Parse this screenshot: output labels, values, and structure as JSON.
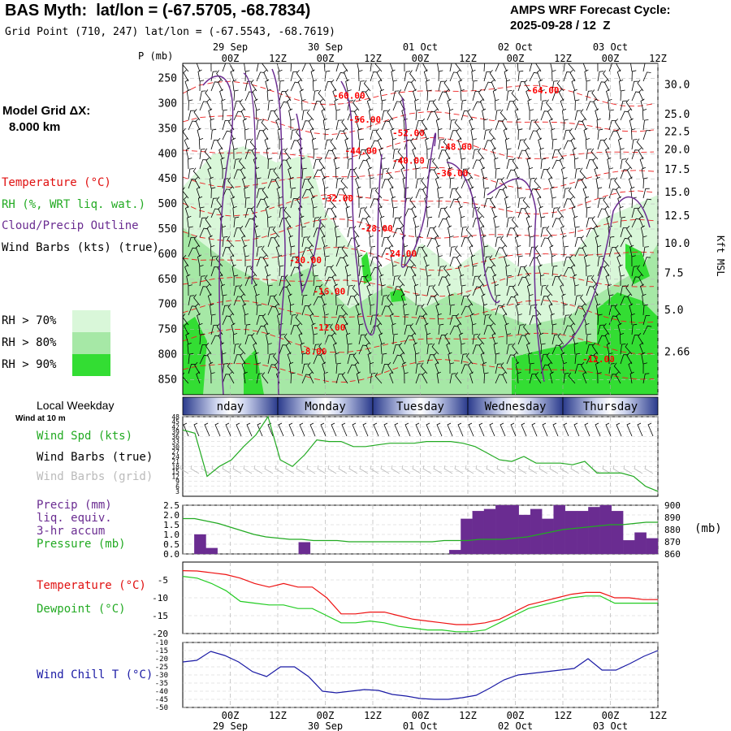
{
  "header": {
    "title": "BAS Myth:  lat/lon = (-67.5705, -68.7834)",
    "subtitle": "Grid Point (710, 247) lat/lon = (-67.5543, -68.7619)",
    "forecast_label": "AMPS WRF Forecast Cycle:",
    "forecast_cycle": "2025-09-28 / 12  Z",
    "model_grid_label": "Model Grid ΔX:",
    "model_grid_value": "8.000 km"
  },
  "time_axis": {
    "hours": [
      -12,
      0,
      12,
      24,
      36,
      48,
      60,
      72,
      84,
      96,
      108
    ],
    "tick_labels": [
      "00Z",
      "12Z",
      "00Z",
      "12Z",
      "00Z",
      "12Z",
      "00Z",
      "12Z",
      "00Z",
      "12Z"
    ],
    "tick_hours": [
      12,
      24,
      36,
      48,
      60,
      72,
      84,
      96,
      108,
      120
    ],
    "date_labels": [
      "29 Sep",
      "30 Sep",
      "01 Oct",
      "02 Oct",
      "03 Oct"
    ],
    "date_hours": [
      12,
      36,
      60,
      84,
      108
    ],
    "range": [
      0,
      120
    ]
  },
  "weekdays": {
    "label": "Local Weekday",
    "days": [
      "nday",
      "Monday",
      "Tuesday",
      "Wednesday",
      "Thursday"
    ]
  },
  "legend": {
    "temperature": "Temperature (°C)",
    "rh": "RH (%, WRT liq. wat.)",
    "cloud": "Cloud/Precip Outline",
    "wind": "Wind Barbs (kts) (true)",
    "rh70": "RH > 70%",
    "rh80": "RH > 80%",
    "rh90": "RH > 90%",
    "colors": {
      "rh70": "#d9f7d9",
      "rh80": "#a6e8a6",
      "rh90": "#33dd33",
      "temp": "#ff0000",
      "cloud": "#6a2c91"
    }
  },
  "chart_data": [
    {
      "type": "heatmap",
      "title": "Vertical time section",
      "ylabel": "P (mb)",
      "y2label": "Kft MSL",
      "p_levels": [
        250,
        300,
        350,
        400,
        450,
        500,
        550,
        600,
        650,
        700,
        750,
        800,
        850
      ],
      "p_range": [
        220,
        880
      ],
      "kft_labels": [
        "30.0",
        "25.0",
        "22.5",
        "20.0",
        "17.5",
        "15.0",
        "12.5",
        "10.0",
        "7.5",
        "5.0",
        "2.66"
      ],
      "kft_pressures": [
        263,
        322,
        357,
        392,
        432,
        477,
        524,
        579,
        638,
        712,
        795,
        880
      ],
      "temperature_labels": [
        {
          "text": "-60.00",
          "hour": 42,
          "p": 290
        },
        {
          "text": "-56.00",
          "hour": 46,
          "p": 338
        },
        {
          "text": "-52.00",
          "hour": 57,
          "p": 365
        },
        {
          "text": "-48.00",
          "hour": 69,
          "p": 392
        },
        {
          "text": "-44.00",
          "hour": 45,
          "p": 400
        },
        {
          "text": "-40.00",
          "hour": 57,
          "p": 420
        },
        {
          "text": "-36.00",
          "hour": 68,
          "p": 445
        },
        {
          "text": "-32.00",
          "hour": 39,
          "p": 495
        },
        {
          "text": "-28.00",
          "hour": 49,
          "p": 555
        },
        {
          "text": "-24.00",
          "hour": 55,
          "p": 605
        },
        {
          "text": "-20.00",
          "hour": 31,
          "p": 618
        },
        {
          "text": "-16.00",
          "hour": 37,
          "p": 680
        },
        {
          "text": "-12.00",
          "hour": 37,
          "p": 752
        },
        {
          "text": "-8.00",
          "hour": 33,
          "p": 800
        },
        {
          "text": "-64.00",
          "hour": 91,
          "p": 280
        },
        {
          "text": "-12.00",
          "hour": 105,
          "p": 815
        }
      ]
    },
    {
      "type": "line",
      "title": "Wind Spd (kts)",
      "series": [
        {
          "name": "Wind Spd (kts)",
          "color": "#22aa22",
          "values": [
            40,
            38,
            12,
            18,
            22,
            30,
            37,
            48,
            22,
            18,
            25,
            34,
            33,
            33,
            30,
            30,
            31,
            32,
            32,
            32,
            33,
            33,
            33,
            32,
            30,
            26,
            22,
            21,
            24,
            20,
            20,
            20,
            19,
            21,
            14,
            14,
            14,
            12,
            6,
            3
          ]
        }
      ],
      "ylim": [
        0,
        48
      ],
      "yticks": [
        3,
        6,
        9,
        12,
        15,
        18,
        21,
        24,
        27,
        30,
        33,
        36,
        39,
        42,
        45,
        48
      ]
    },
    {
      "type": "bar",
      "title": "Precip (mm) liq. equiv. 3-hr accum",
      "values": [
        0,
        1.0,
        0.3,
        0,
        0,
        0,
        0,
        0,
        0,
        0,
        0.6,
        0,
        0,
        0,
        0,
        0,
        0,
        0,
        0,
        0,
        0,
        0,
        0,
        0.2,
        1.8,
        2.2,
        2.3,
        2.5,
        2.5,
        2.0,
        2.3,
        1.8,
        2.5,
        2.2,
        2.2,
        2.4,
        2.5,
        2.2,
        0.7,
        1.1,
        0.8
      ],
      "ylim": [
        0,
        2.5
      ],
      "yticks": [
        "0.0",
        "0.5",
        "1.0",
        "1.5",
        "2.0",
        "2.5"
      ],
      "pressure": {
        "name": "Pressure (mb)",
        "ylim": [
          860,
          900
        ],
        "yticks": [
          "860",
          "870",
          "880",
          "890",
          "900"
        ],
        "values": [
          889,
          889,
          887,
          885,
          882,
          879,
          876,
          874,
          873,
          872,
          872,
          871,
          871,
          871,
          870,
          870,
          870,
          870,
          870,
          870,
          870,
          870,
          871,
          871,
          871,
          872,
          872,
          872,
          873,
          874,
          876,
          878,
          880,
          881,
          882,
          883,
          884,
          884,
          885,
          886,
          886
        ]
      }
    },
    {
      "type": "line",
      "title": "Temperature / Dewpoint",
      "ylim": [
        -20,
        0
      ],
      "yticks": [
        "-5",
        "-10",
        "-15",
        "-20"
      ],
      "series": [
        {
          "name": "Temperature (°C)",
          "color": "#ee1111",
          "values": [
            -2.4,
            -2.5,
            -3,
            -3.5,
            -4.5,
            -6,
            -7,
            -6,
            -7,
            -7,
            -10,
            -14.5,
            -14.5,
            -14,
            -14,
            -15,
            -16,
            -16.5,
            -17,
            -17.5,
            -17.5,
            -17,
            -16,
            -14,
            -12,
            -11,
            -10,
            -9,
            -8.5,
            -8.5,
            -10,
            -10,
            -10.5,
            -10.5
          ]
        },
        {
          "name": "Dewpoint (°C)",
          "color": "#22cc22",
          "values": [
            -4,
            -4.5,
            -6,
            -8,
            -11,
            -11.5,
            -12,
            -12,
            -13,
            -13,
            -15,
            -17,
            -17,
            -16.5,
            -17,
            -18,
            -18.5,
            -19,
            -19,
            -19.5,
            -19.5,
            -19,
            -17,
            -15,
            -13,
            -12,
            -11,
            -10,
            -9.5,
            -9.5,
            -11.5,
            -11.5,
            -11.5,
            -11.5
          ]
        }
      ]
    },
    {
      "type": "line",
      "title": "Wind Chill T (°C)",
      "ylim": [
        -50,
        -10
      ],
      "yticks": [
        "-10",
        "-15",
        "-20",
        "-25",
        "-30",
        "-35",
        "-40",
        "-45",
        "-50"
      ],
      "series": [
        {
          "name": "Wind Chill T (°C)",
          "color": "#1a1aa5",
          "values": [
            -22,
            -21,
            -15.5,
            -18,
            -22,
            -28,
            -31,
            -25,
            -25,
            -31,
            -40,
            -41,
            -40,
            -39,
            -39.5,
            -42,
            -43,
            -44.5,
            -45,
            -45,
            -44,
            -42.5,
            -38,
            -33,
            -30,
            -29,
            -28,
            -27,
            -26,
            -20,
            -27,
            -27,
            -23,
            -18.5,
            -15
          ]
        }
      ]
    }
  ],
  "panel_labels": {
    "wind_at_10m": "Wind at 10 m",
    "wind_spd": "Wind Spd (kts)",
    "wind_barbs_true": "Wind Barbs (true)",
    "wind_barbs_grid": "Wind Barbs (grid)",
    "precip_1": "Precip (mm)",
    "precip_2": "liq. equiv.",
    "precip_3": "3-hr accum",
    "pressure": "Pressure (mb)",
    "pressure_unit": "(mb)",
    "temperature": "Temperature (°C)",
    "dewpoint": "Dewpoint (°C)",
    "wind_chill": "Wind Chill T (°C)"
  }
}
